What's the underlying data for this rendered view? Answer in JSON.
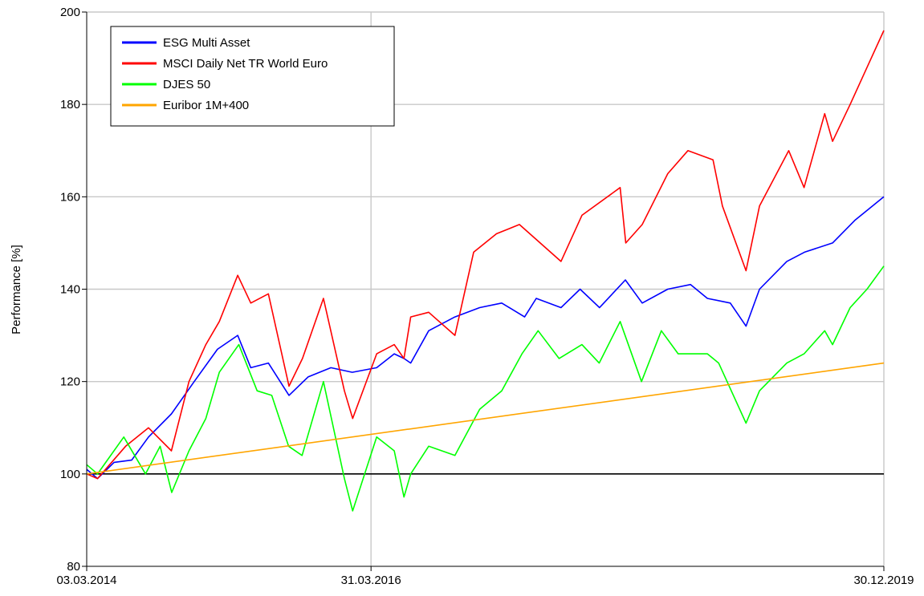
{
  "chart_data": {
    "type": "line",
    "title": "",
    "xlabel": "",
    "ylabel": "Performance [%]",
    "ylim": [
      80,
      200
    ],
    "yticks": [
      80,
      100,
      120,
      140,
      160,
      180,
      200
    ],
    "xlim": [
      "2014-03-03",
      "2019-12-30"
    ],
    "xticks": [
      "03.03.2014",
      "31.03.2016",
      "30.12.2019"
    ],
    "grid": true,
    "legend_position": "top-left",
    "baseline": 100,
    "series": [
      {
        "name": "ESG Multi Asset",
        "color": "#0000ff",
        "x": [
          "2014-03-03",
          "2014-04-01",
          "2014-05-15",
          "2014-07-01",
          "2014-08-15",
          "2014-10-15",
          "2014-12-15",
          "2015-02-15",
          "2015-04-10",
          "2015-05-15",
          "2015-07-01",
          "2015-08-25",
          "2015-10-15",
          "2015-12-15",
          "2016-02-10",
          "2016-04-15",
          "2016-06-01",
          "2016-06-27",
          "2016-07-15",
          "2016-09-01",
          "2016-11-10",
          "2017-01-15",
          "2017-03-15",
          "2017-05-15",
          "2017-06-15",
          "2017-08-20",
          "2017-10-10",
          "2017-12-01",
          "2018-02-08",
          "2018-03-25",
          "2018-06-01",
          "2018-08-01",
          "2018-09-15",
          "2018-11-15",
          "2018-12-27",
          "2019-02-01",
          "2019-04-15",
          "2019-06-01",
          "2019-08-15",
          "2019-10-15",
          "2019-12-30"
        ],
        "values": [
          101,
          99,
          102.5,
          103,
          108,
          113,
          120,
          127,
          130,
          123,
          124,
          117,
          121,
          123,
          122,
          123,
          126,
          125,
          124,
          131,
          134,
          136,
          137,
          134,
          138,
          136,
          140,
          136,
          142,
          137,
          140,
          141,
          138,
          137,
          132,
          140,
          146,
          148,
          150,
          155,
          160
        ]
      },
      {
        "name": "MSCI Daily Net TR World Euro",
        "color": "#ff0000",
        "x": [
          "2014-03-03",
          "2014-04-01",
          "2014-06-15",
          "2014-08-15",
          "2014-10-15",
          "2014-12-01",
          "2015-01-15",
          "2015-02-20",
          "2015-04-10",
          "2015-05-15",
          "2015-07-01",
          "2015-08-25",
          "2015-09-30",
          "2015-11-25",
          "2016-01-20",
          "2016-02-11",
          "2016-04-15",
          "2016-06-01",
          "2016-06-27",
          "2016-07-15",
          "2016-09-01",
          "2016-11-10",
          "2016-12-30",
          "2017-03-01",
          "2017-05-01",
          "2017-08-20",
          "2017-10-15",
          "2018-01-25",
          "2018-02-09",
          "2018-03-25",
          "2018-06-01",
          "2018-07-25",
          "2018-09-30",
          "2018-10-25",
          "2018-12-27",
          "2019-02-01",
          "2019-04-20",
          "2019-05-31",
          "2019-07-25",
          "2019-08-15",
          "2019-10-01",
          "2019-11-15",
          "2019-12-30"
        ],
        "values": [
          100,
          99,
          106,
          110,
          105,
          120,
          128,
          133,
          143,
          137,
          139,
          119,
          125,
          138,
          118,
          112,
          126,
          128,
          125,
          134,
          135,
          130,
          148,
          152,
          154,
          146,
          156,
          162,
          150,
          154,
          165,
          170,
          168,
          158,
          144,
          158,
          170,
          162,
          178,
          172,
          180,
          188,
          196
        ]
      },
      {
        "name": "DJES 50",
        "color": "#00ff00",
        "x": [
          "2014-03-03",
          "2014-04-01",
          "2014-06-10",
          "2014-08-07",
          "2014-09-15",
          "2014-10-16",
          "2014-12-01",
          "2015-01-15",
          "2015-02-20",
          "2015-04-13",
          "2015-06-01",
          "2015-07-10",
          "2015-08-24",
          "2015-09-29",
          "2015-11-25",
          "2016-01-20",
          "2016-02-11",
          "2016-04-15",
          "2016-06-01",
          "2016-06-27",
          "2016-07-15",
          "2016-09-01",
          "2016-11-10",
          "2017-01-15",
          "2017-03-15",
          "2017-05-08",
          "2017-06-20",
          "2017-08-15",
          "2017-10-15",
          "2017-11-30",
          "2018-01-25",
          "2018-03-23",
          "2018-05-15",
          "2018-06-29",
          "2018-09-15",
          "2018-10-15",
          "2018-12-27",
          "2019-02-01",
          "2019-04-15",
          "2019-05-31",
          "2019-07-25",
          "2019-08-15",
          "2019-10-01",
          "2019-11-15",
          "2019-12-30"
        ],
        "values": [
          102,
          100,
          108,
          100,
          106,
          96,
          105,
          112,
          122,
          128,
          118,
          117,
          106,
          104,
          120,
          99,
          92,
          108,
          105,
          95,
          100,
          106,
          104,
          114,
          118,
          126,
          131,
          125,
          128,
          124,
          133,
          120,
          131,
          126,
          126,
          124,
          111,
          118,
          124,
          126,
          131,
          128,
          136,
          140,
          145
        ]
      },
      {
        "name": "Euribor 1M+400",
        "color": "#ffa500",
        "x": [
          "2014-03-03",
          "2019-12-30"
        ],
        "values": [
          100,
          124
        ]
      }
    ]
  }
}
